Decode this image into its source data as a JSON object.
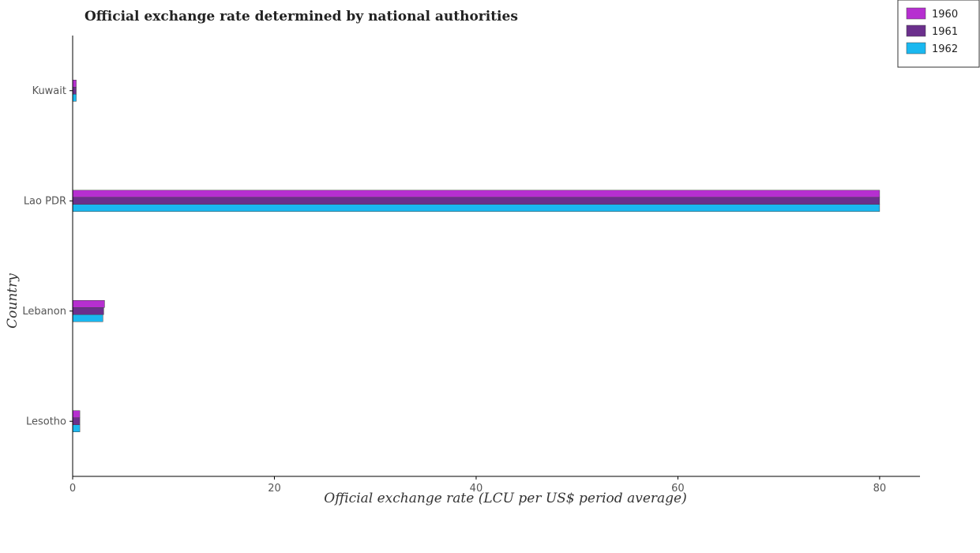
{
  "chart_data": {
    "type": "bar",
    "orientation": "horizontal",
    "title": "Official exchange rate determined by national authorities",
    "xlabel": "Official exchange rate (LCU per US$ period average)",
    "ylabel": "Country",
    "categories": [
      "Kuwait",
      "Lao PDR",
      "Lebanon",
      "Lesotho"
    ],
    "xlim": [
      0,
      84
    ],
    "xticks": [
      0,
      20,
      40,
      60,
      80
    ],
    "xtick_labels": [
      "0",
      "20",
      "40",
      "60",
      "80"
    ],
    "series": [
      {
        "name": "1960",
        "color": "#b62fd0",
        "values": [
          0.357,
          80,
          3.165,
          0.714
        ]
      },
      {
        "name": "1961",
        "color": "#6b2f8c",
        "values": [
          0.357,
          80,
          3.08,
          0.714
        ]
      },
      {
        "name": "1962",
        "color": "#1ab8f0",
        "values": [
          0.357,
          80,
          3.0,
          0.714
        ]
      }
    ],
    "legend_position": "top-right",
    "grid": false
  }
}
